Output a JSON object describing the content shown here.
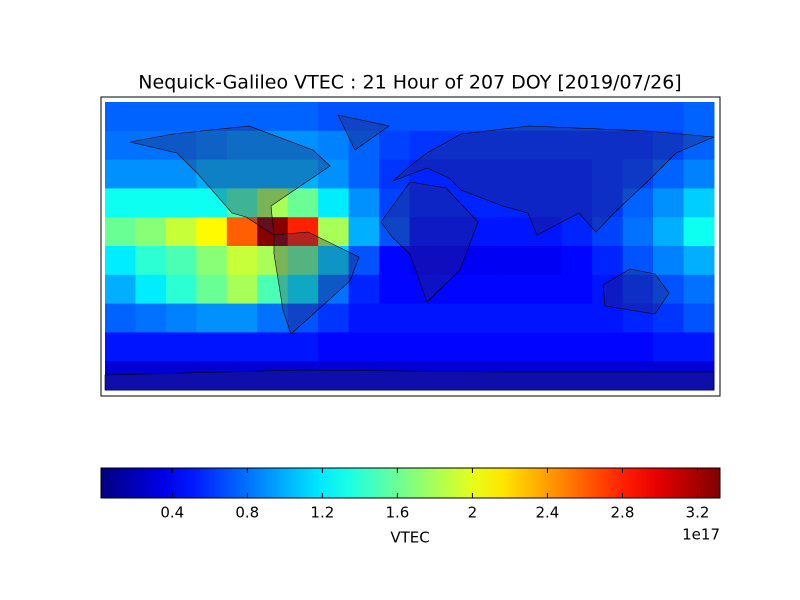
{
  "chart_data": {
    "type": "heatmap",
    "title": "Nequick-Galileo VTEC : 21 Hour of 207 DOY [2019/07/26]",
    "colormap": "jet",
    "values": [
      [
        0.75,
        0.75,
        0.75,
        0.75,
        0.75,
        0.75,
        0.75,
        0.7,
        0.7,
        0.7,
        0.7,
        0.7,
        0.7,
        0.7,
        0.7,
        0.7,
        0.7,
        0.7,
        0.7,
        0.75
      ],
      [
        0.8,
        0.8,
        0.8,
        0.85,
        0.9,
        0.9,
        0.9,
        0.85,
        0.75,
        0.65,
        0.6,
        0.6,
        0.6,
        0.6,
        0.6,
        0.6,
        0.6,
        0.6,
        0.65,
        0.75
      ],
      [
        0.9,
        0.9,
        0.9,
        1.0,
        1.0,
        1.0,
        1.0,
        0.9,
        0.75,
        0.6,
        0.55,
        0.55,
        0.55,
        0.55,
        0.55,
        0.55,
        0.6,
        0.65,
        0.75,
        0.85
      ],
      [
        1.3,
        1.3,
        1.3,
        1.3,
        1.5,
        1.8,
        1.6,
        1.2,
        0.9,
        0.65,
        0.55,
        0.55,
        0.55,
        0.55,
        0.55,
        0.55,
        0.6,
        0.75,
        0.9,
        1.1
      ],
      [
        1.6,
        1.7,
        1.9,
        2.1,
        2.6,
        3.3,
        2.8,
        1.8,
        1.0,
        0.7,
        0.5,
        0.5,
        0.5,
        0.5,
        0.5,
        0.55,
        0.65,
        0.8,
        1.0,
        1.3
      ],
      [
        1.2,
        1.4,
        1.5,
        1.7,
        1.9,
        1.8,
        1.6,
        1.1,
        0.7,
        0.45,
        0.4,
        0.4,
        0.4,
        0.4,
        0.4,
        0.45,
        0.55,
        0.7,
        0.85,
        1.0
      ],
      [
        1.0,
        1.2,
        1.4,
        1.6,
        1.8,
        1.5,
        1.2,
        0.8,
        0.55,
        0.45,
        0.45,
        0.45,
        0.45,
        0.45,
        0.45,
        0.45,
        0.5,
        0.6,
        0.7,
        0.8
      ],
      [
        0.75,
        0.8,
        0.85,
        0.9,
        0.9,
        0.8,
        0.7,
        0.6,
        0.5,
        0.5,
        0.5,
        0.5,
        0.5,
        0.5,
        0.5,
        0.5,
        0.5,
        0.55,
        0.6,
        0.7
      ],
      [
        0.5,
        0.5,
        0.5,
        0.5,
        0.5,
        0.5,
        0.5,
        0.45,
        0.45,
        0.45,
        0.45,
        0.45,
        0.45,
        0.45,
        0.45,
        0.45,
        0.45,
        0.45,
        0.5,
        0.5
      ],
      [
        0.3,
        0.3,
        0.3,
        0.3,
        0.3,
        0.3,
        0.3,
        0.3,
        0.3,
        0.3,
        0.3,
        0.3,
        0.3,
        0.3,
        0.3,
        0.3,
        0.3,
        0.3,
        0.3,
        0.3
      ]
    ],
    "clim": [
      0.02,
      3.32
    ],
    "cticks": [
      0.4,
      0.8,
      1.2,
      1.6,
      2.0,
      2.4,
      2.8,
      3.2
    ],
    "clabel": "VTEC",
    "offset_label": "1e17"
  }
}
